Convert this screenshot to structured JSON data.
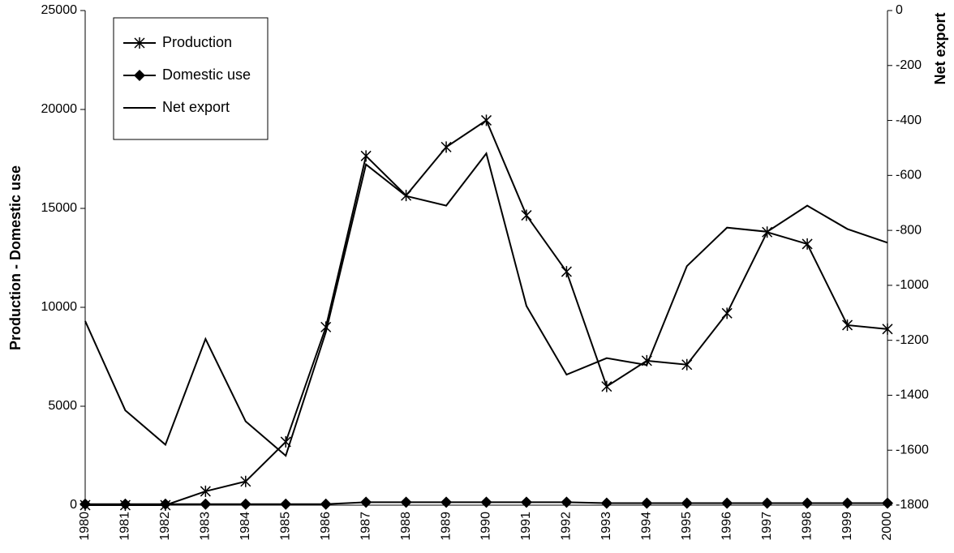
{
  "chart_data": {
    "type": "line",
    "y_label": "Production - Domestic use",
    "y2_label": "Net export",
    "categories": [
      "1980",
      "1981",
      "1982",
      "1983",
      "1984",
      "1985",
      "1986",
      "1987",
      "1988",
      "1989",
      "1990",
      "1991",
      "1992",
      "1993",
      "1994",
      "1995",
      "1996",
      "1997",
      "1998",
      "1999",
      "2000"
    ],
    "series": [
      {
        "name": "Production",
        "color": "#000000",
        "marker": "star",
        "values": [
          0,
          0,
          0,
          700,
          1200,
          3200,
          9000,
          17650,
          15650,
          18100,
          19450,
          14650,
          11800,
          6000,
          7300,
          7100,
          9700,
          13800,
          13200,
          9100,
          8900
        ]
      },
      {
        "name": "Domestic use",
        "color": "#000000",
        "marker": "diamond",
        "values": [
          50,
          50,
          50,
          50,
          50,
          50,
          50,
          150,
          150,
          150,
          150,
          150,
          150,
          100,
          100,
          100,
          100,
          100,
          100,
          100,
          100
        ]
      },
      {
        "name": "Net export",
        "color": "#000000",
        "marker": "none",
        "axis": "y2",
        "values": [
          -1130,
          -1455,
          -1580,
          -1195,
          -1495,
          -1620,
          -1170,
          -560,
          -675,
          -710,
          -520,
          -1075,
          -1325,
          -1265,
          -1290,
          -930,
          -790,
          -805,
          -710,
          -795,
          -845
        ]
      }
    ],
    "ylim": [
      0,
      25000
    ],
    "yticks": [
      0,
      5000,
      10000,
      15000,
      20000,
      25000
    ],
    "y2lim": [
      -1800,
      0
    ],
    "y2ticks": [
      -1800,
      -1600,
      -1400,
      -1200,
      -1000,
      -800,
      -600,
      -400,
      -200,
      0
    ],
    "legend": "top-left"
  }
}
